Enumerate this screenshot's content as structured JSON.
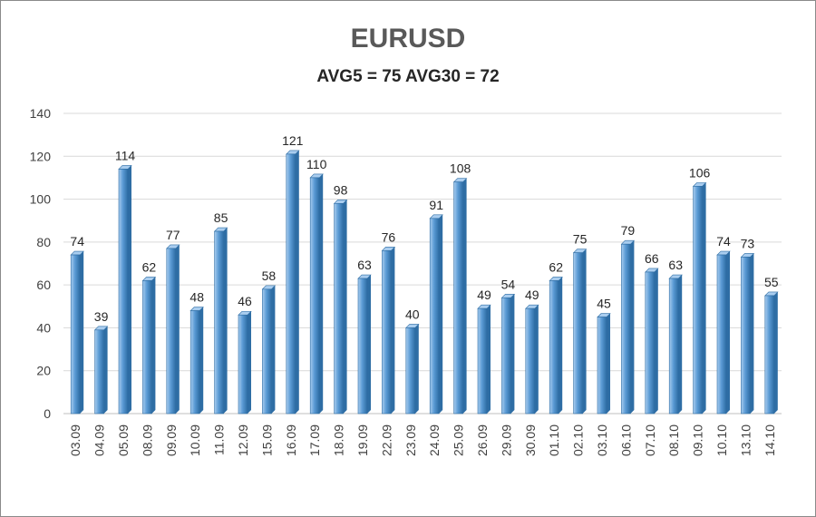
{
  "chart_data": {
    "type": "bar",
    "title": "EURUSD",
    "subtitle": "AVG5 = 75 AVG30 = 72",
    "categories": [
      "03.09",
      "04.09",
      "05.09",
      "08.09",
      "09.09",
      "10.09",
      "11.09",
      "12.09",
      "15.09",
      "16.09",
      "17.09",
      "18.09",
      "19.09",
      "22.09",
      "23.09",
      "24.09",
      "25.09",
      "26.09",
      "29.09",
      "30.09",
      "01.10",
      "02.10",
      "03.10",
      "06.10",
      "07.10",
      "08.10",
      "09.10",
      "10.10",
      "13.10",
      "14.10"
    ],
    "values": [
      74,
      39,
      114,
      62,
      77,
      48,
      85,
      46,
      58,
      121,
      110,
      98,
      63,
      76,
      40,
      91,
      108,
      49,
      54,
      49,
      62,
      75,
      45,
      79,
      66,
      63,
      106,
      74,
      73,
      55
    ],
    "ylim": [
      0,
      140
    ],
    "yticks": [
      0,
      20,
      40,
      60,
      80,
      100,
      120,
      140
    ],
    "grid": true,
    "legend": "none",
    "bar_color": "#5b9bd5",
    "bar_dark_color": "#2e6da4",
    "bar_light_color": "#a9cdef"
  }
}
